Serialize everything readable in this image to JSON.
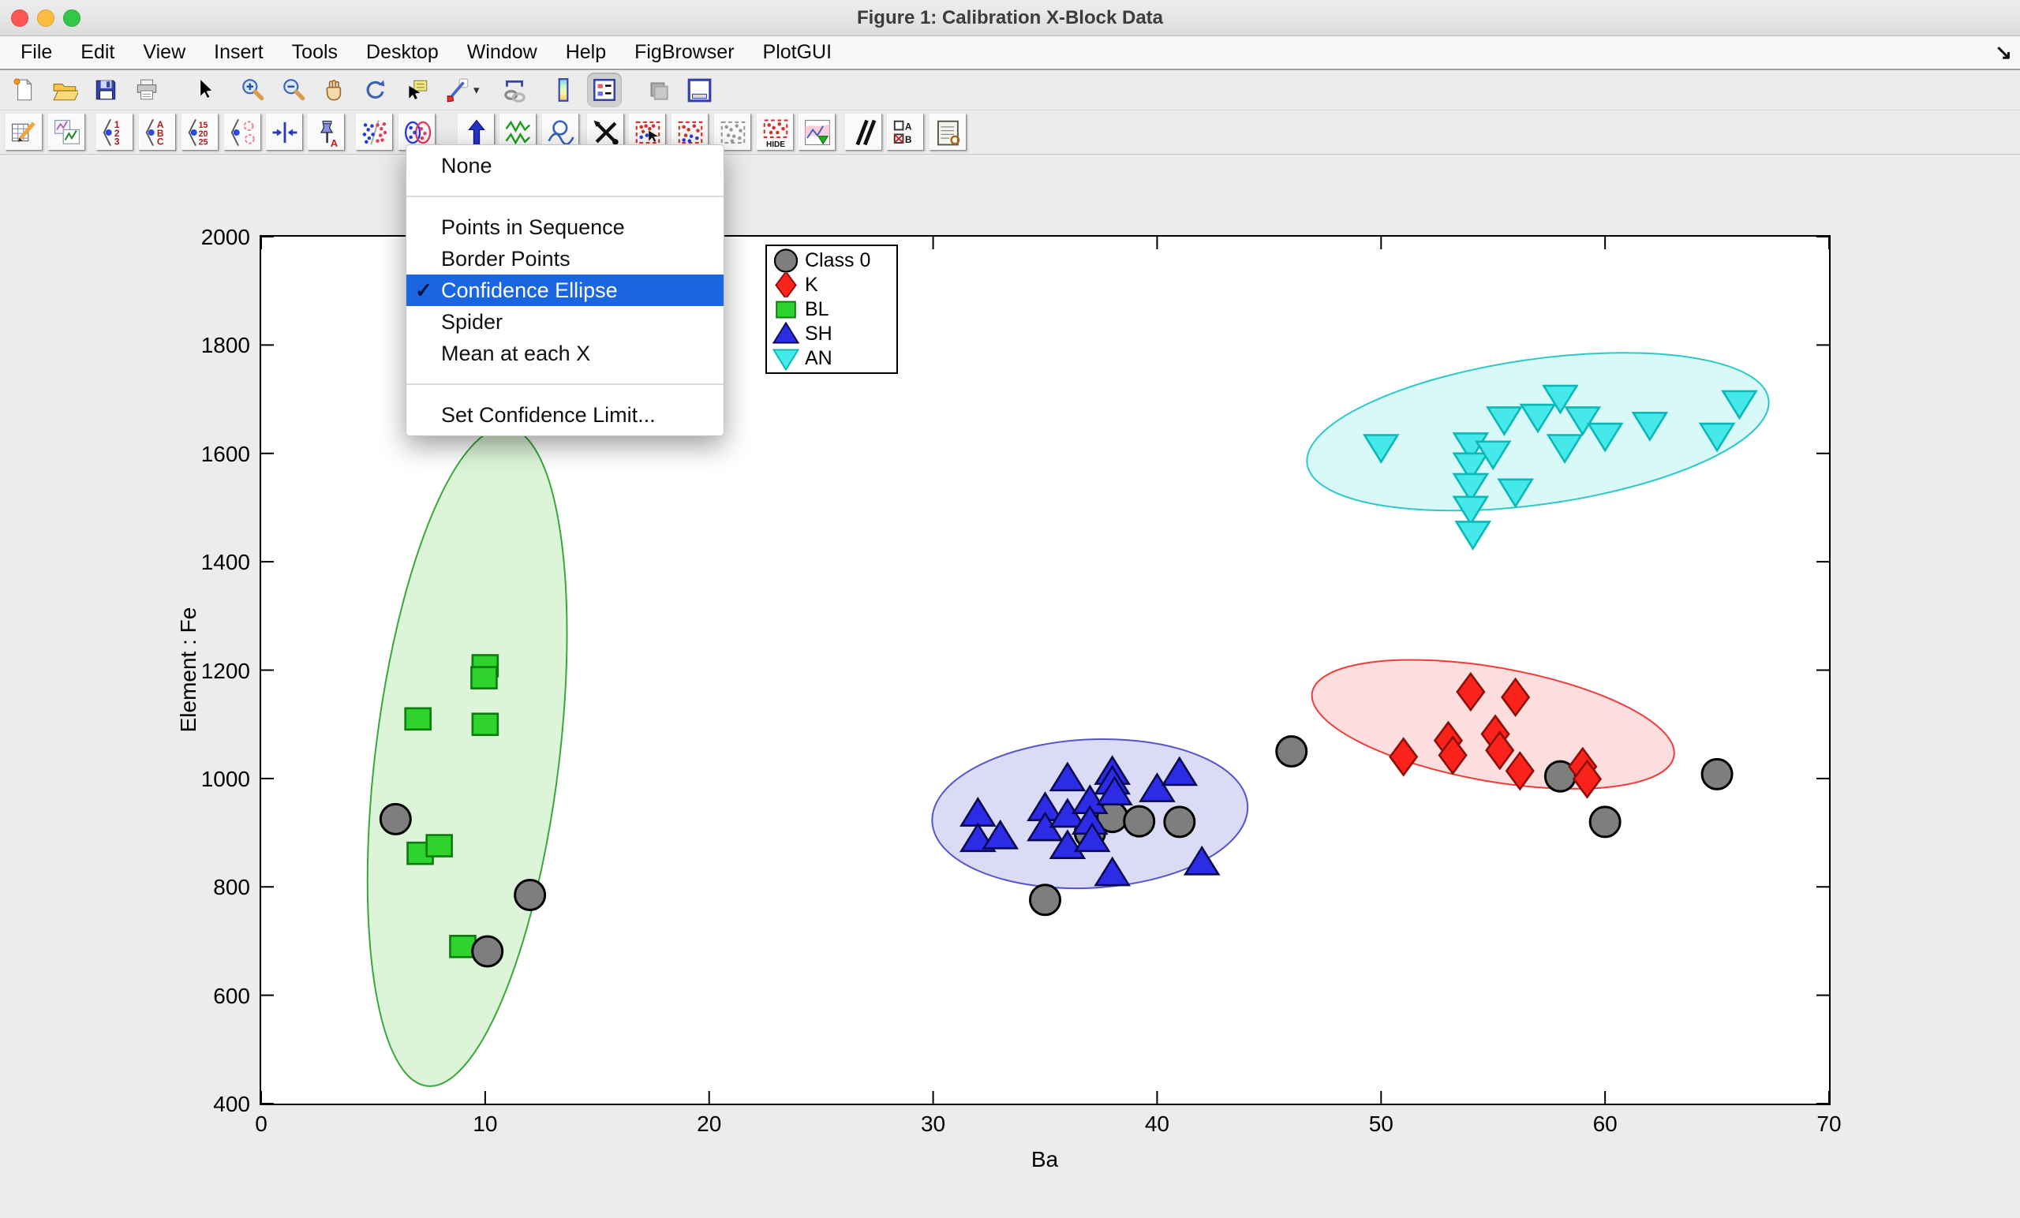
{
  "window": {
    "title": "Figure 1: Calibration X-Block Data",
    "menubar_overflow_glyph": "↘"
  },
  "menubar": {
    "items": [
      "File",
      "Edit",
      "View",
      "Insert",
      "Tools",
      "Desktop",
      "Window",
      "Help",
      "FigBrowser",
      "PlotGUI"
    ]
  },
  "toolbar_main": {
    "caret_glyph": "▾",
    "buttons": [
      {
        "name": "new-file"
      },
      {
        "name": "open-folder"
      },
      {
        "name": "save"
      },
      {
        "name": "print"
      },
      {
        "name": "edit-pointer",
        "gap": 28
      },
      {
        "name": "zoom-in",
        "gap": 18
      },
      {
        "name": "zoom-out"
      },
      {
        "name": "pan-hand"
      },
      {
        "name": "rotate-3d"
      },
      {
        "name": "data-cursor"
      },
      {
        "name": "brush",
        "caret": true
      },
      {
        "name": "link-plot",
        "gap": 16
      },
      {
        "name": "insert-colorbar",
        "gap": 18
      },
      {
        "name": "insert-legend",
        "pressed": true
      },
      {
        "name": "hide-plot-tools",
        "gap": 24
      },
      {
        "name": "dock-figure"
      }
    ]
  },
  "toolbar_plot": {
    "buttons": [
      {
        "name": "edit-data"
      },
      {
        "name": "duplicate-plot"
      },
      {
        "name": "label-numbers",
        "gap": 14
      },
      {
        "name": "label-text"
      },
      {
        "name": "label-values"
      },
      {
        "name": "label-classes"
      },
      {
        "name": "compress-axes",
        "gap": 6
      },
      {
        "name": "pin-label",
        "gap": 6
      },
      {
        "name": "split-scatter",
        "gap": 14
      },
      {
        "name": "confidence-ellipse"
      },
      {
        "name": "y-up-arrow",
        "gap": 28
      },
      {
        "name": "green-signals",
        "gap": 6
      },
      {
        "name": "q-limit"
      },
      {
        "name": "crossed-tools",
        "gap": 10
      },
      {
        "name": "select-red",
        "gap": 6
      },
      {
        "name": "select-redblue"
      },
      {
        "name": "select-gray"
      },
      {
        "name": "hide-selection"
      },
      {
        "name": "robust-plot",
        "gap": 6
      },
      {
        "name": "slash-lines",
        "gap": 12
      },
      {
        "name": "ab-select",
        "gap": 6
      },
      {
        "name": "report-list"
      }
    ]
  },
  "context_menu": {
    "check_glyph": "✓",
    "items": [
      {
        "label": "None"
      },
      {
        "type": "separator"
      },
      {
        "label": "Points in Sequence"
      },
      {
        "label": "Border Points"
      },
      {
        "label": "Confidence Ellipse",
        "checked": true,
        "highlighted": true
      },
      {
        "label": "Spider"
      },
      {
        "label": "Mean at each X"
      },
      {
        "type": "separator"
      },
      {
        "label": "Set Confidence Limit..."
      }
    ]
  },
  "chart_data": {
    "type": "scatter",
    "xlabel": "Ba",
    "ylabel": "Element : Fe",
    "xlim": [
      0,
      70
    ],
    "ylim": [
      400,
      2000
    ],
    "xticks": [
      0,
      10,
      20,
      30,
      40,
      50,
      60,
      70
    ],
    "yticks": [
      400,
      600,
      800,
      1000,
      1200,
      1400,
      1600,
      1800,
      2000
    ],
    "grid": false,
    "legend": {
      "position": "top-left-inside",
      "entries": [
        {
          "label": "Class 0",
          "marker": "circle",
          "fill": "#7e7e7e",
          "edge": "#000000"
        },
        {
          "label": "K",
          "marker": "diamond",
          "fill": "#fa231c",
          "edge": "#8c0f0a"
        },
        {
          "label": "BL",
          "marker": "square",
          "fill": "#2ed32e",
          "edge": "#0c7c0c"
        },
        {
          "label": "SH",
          "marker": "triangle-up",
          "fill": "#2c2ce6",
          "edge": "#0a0a50"
        },
        {
          "label": "AN",
          "marker": "triangle-down",
          "fill": "#45e9e9",
          "edge": "#0bb8b8"
        }
      ]
    },
    "series": [
      {
        "name": "BL",
        "marker": "square",
        "fill": "#2ed32e",
        "edge": "#0c7c0c",
        "points": [
          [
            7,
            1110
          ],
          [
            7.1,
            862
          ],
          [
            7.95,
            876
          ],
          [
            9,
            690
          ],
          [
            10,
            1208
          ],
          [
            9.95,
            1186
          ],
          [
            10,
            1100
          ]
        ]
      },
      {
        "name": "Class 0",
        "marker": "circle",
        "fill": "#7e7e7e",
        "edge": "#000000",
        "points": [
          [
            6,
            925
          ],
          [
            12,
            785
          ],
          [
            10.1,
            681
          ],
          [
            35,
            776
          ],
          [
            37,
            900
          ],
          [
            38,
            929
          ],
          [
            39.2,
            921
          ],
          [
            41,
            920
          ],
          [
            46,
            1050
          ],
          [
            58,
            1004
          ],
          [
            60,
            920
          ],
          [
            65,
            1008
          ]
        ]
      },
      {
        "name": "SH",
        "marker": "triangle-up",
        "fill": "#2c2ce6",
        "edge": "#0a0a50",
        "points": [
          [
            32,
            935
          ],
          [
            32,
            888
          ],
          [
            33,
            893
          ],
          [
            35,
            945
          ],
          [
            35,
            908
          ],
          [
            36,
            1000
          ],
          [
            36,
            933
          ],
          [
            36,
            875
          ],
          [
            37,
            958
          ],
          [
            37,
            920
          ],
          [
            37.1,
            888
          ],
          [
            38,
            1012
          ],
          [
            38,
            994
          ],
          [
            38.1,
            974
          ],
          [
            38,
            825
          ],
          [
            40,
            980
          ],
          [
            41,
            1010
          ],
          [
            42,
            845
          ]
        ]
      },
      {
        "name": "K",
        "marker": "diamond",
        "fill": "#fa231c",
        "edge": "#8c0f0a",
        "points": [
          [
            51,
            1040
          ],
          [
            53,
            1070
          ],
          [
            53.2,
            1043
          ],
          [
            54,
            1160
          ],
          [
            55.1,
            1082
          ],
          [
            55.3,
            1052
          ],
          [
            56,
            1150
          ],
          [
            56.2,
            1014
          ],
          [
            59,
            1022
          ],
          [
            59.2,
            999
          ]
        ]
      },
      {
        "name": "AN",
        "marker": "triangle-down",
        "fill": "#45e9e9",
        "edge": "#0bb8b8",
        "points": [
          [
            50,
            1612
          ],
          [
            54,
            1615
          ],
          [
            54,
            1578
          ],
          [
            54,
            1540
          ],
          [
            54,
            1498
          ],
          [
            54.1,
            1452
          ],
          [
            55,
            1600
          ],
          [
            55.5,
            1663
          ],
          [
            56,
            1530
          ],
          [
            57,
            1668
          ],
          [
            58,
            1703
          ],
          [
            58.2,
            1612
          ],
          [
            59,
            1663
          ],
          [
            60,
            1633
          ],
          [
            62,
            1653
          ],
          [
            65,
            1633
          ],
          [
            66,
            1693
          ]
        ]
      }
    ],
    "confidence_ellipses": [
      {
        "class": "BL",
        "cx": 9.2,
        "cy": 1040,
        "rx": 4.1,
        "ry": 612,
        "rot_deg": 7,
        "fill": "#dcf5d8",
        "stroke": "#39a839"
      },
      {
        "class": "SH",
        "cx": 37,
        "cy": 935,
        "rx": 7.05,
        "ry": 137,
        "rot_deg": -3,
        "fill": "#dbdbf6",
        "stroke": "#5555cf"
      },
      {
        "class": "K",
        "cx": 55,
        "cy": 1100,
        "rx": 8.2,
        "ry": 105,
        "rot_deg": 10,
        "fill": "#fcdede",
        "stroke": "#ef3b3b"
      },
      {
        "class": "AN",
        "cx": 57,
        "cy": 1640,
        "rx": 10.4,
        "ry": 134,
        "rot_deg": -8,
        "fill": "#d9f8f8",
        "stroke": "#2cc9c9"
      }
    ]
  },
  "colors": {
    "selection_blue": "#1a66e0",
    "window_background": "#ececec"
  }
}
